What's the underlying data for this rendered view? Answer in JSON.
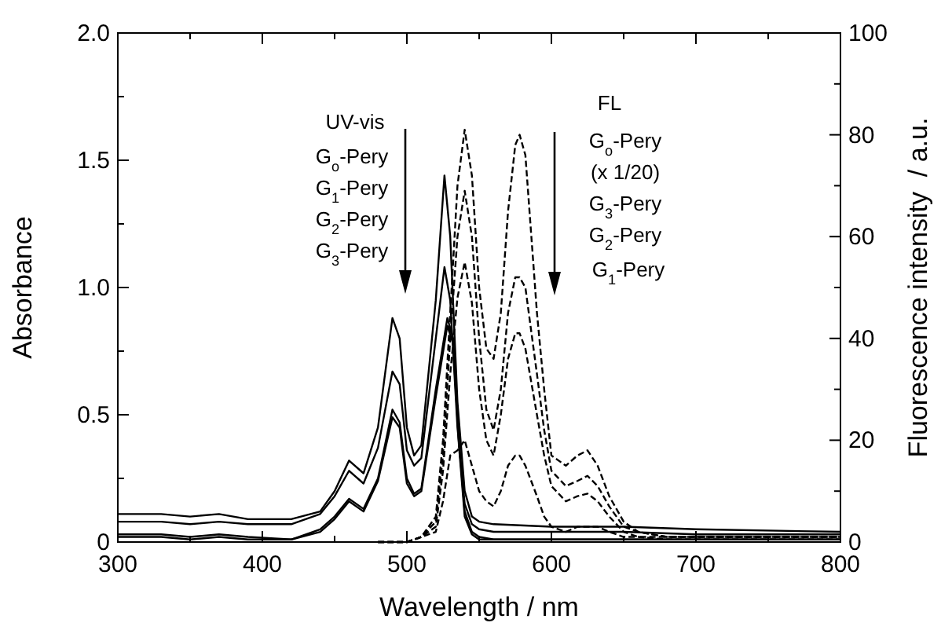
{
  "chart_data": {
    "type": "line",
    "xlabel": "Wavelength / nm",
    "ylabel": "Absorbance",
    "y2label": "Fluorescence intensity  / a.u.",
    "xlim": [
      300,
      800
    ],
    "xticks": [
      300,
      {
        "value": 350,
        "label": null
      },
      400,
      {
        "value": 450,
        "label": null
      },
      500,
      {
        "value": 550,
        "label": null
      },
      600,
      {
        "value": 650,
        "label": null
      },
      700,
      {
        "value": 750,
        "label": null
      },
      800
    ],
    "ylim": [
      0,
      2
    ],
    "yticks": [
      0,
      {
        "value": 0.25,
        "label": null
      },
      0.5,
      {
        "value": 0.75,
        "label": null
      },
      {
        "value": 1,
        "label": "1.0"
      },
      {
        "value": 1.25,
        "label": null
      },
      1.5,
      {
        "value": 1.75,
        "label": null
      },
      {
        "value": 2,
        "label": "2.0"
      }
    ],
    "y2lim": [
      0,
      100
    ],
    "y2ticks": [
      0,
      {
        "value": 10,
        "label": null
      },
      20,
      {
        "value": 30,
        "label": null
      },
      40,
      {
        "value": 50,
        "label": null
      },
      60,
      {
        "value": 70,
        "label": null
      },
      80,
      {
        "value": 90,
        "label": null
      },
      100
    ],
    "annotations": [
      "UV-vis",
      "G$_{o}$-Pery",
      "G$_{1}$-Pery",
      "G$_{2}$-Pery",
      "G$_{3}$-Pery",
      "FL",
      "G$_{o}$-Pery",
      "(x 1/20)",
      "G$_{3}$-Pery",
      "G$_{2}$-Pery",
      "G$_{1}$-Pery"
    ],
    "series": [
      {
        "color": "#000000",
        "line_style": "solid",
        "x": [
          300,
          330,
          350,
          370,
          390,
          420,
          440,
          450,
          460,
          470,
          480,
          490,
          495,
          500,
          505,
          510,
          520,
          526,
          530,
          535,
          540,
          545,
          550,
          560,
          600,
          650,
          700,
          800
        ],
        "values": [
          0.11,
          0.11,
          0.1,
          0.11,
          0.09,
          0.09,
          0.12,
          0.2,
          0.32,
          0.27,
          0.45,
          0.88,
          0.8,
          0.45,
          0.34,
          0.38,
          0.95,
          1.44,
          1.2,
          0.55,
          0.2,
          0.1,
          0.08,
          0.07,
          0.06,
          0.06,
          0.05,
          0.04
        ]
      },
      {
        "color": "#000000",
        "line_style": "solid",
        "x": [
          300,
          330,
          350,
          370,
          390,
          420,
          440,
          450,
          460,
          470,
          480,
          490,
          495,
          500,
          505,
          510,
          520,
          526,
          530,
          535,
          540,
          545,
          550,
          560,
          600,
          650,
          700,
          800
        ],
        "values": [
          0.08,
          0.08,
          0.07,
          0.08,
          0.07,
          0.07,
          0.11,
          0.18,
          0.28,
          0.23,
          0.37,
          0.67,
          0.62,
          0.36,
          0.3,
          0.33,
          0.8,
          1.08,
          0.95,
          0.45,
          0.15,
          0.07,
          0.05,
          0.04,
          0.04,
          0.04,
          0.03,
          0.03
        ]
      },
      {
        "color": "#000000",
        "line_style": "solid",
        "x": [
          300,
          330,
          350,
          370,
          390,
          420,
          440,
          450,
          460,
          470,
          480,
          490,
          495,
          500,
          505,
          510,
          520,
          528,
          532,
          536,
          540,
          545,
          550,
          560,
          600,
          650,
          700,
          800
        ],
        "values": [
          0.03,
          0.03,
          0.02,
          0.03,
          0.02,
          0.01,
          0.05,
          0.1,
          0.17,
          0.13,
          0.25,
          0.52,
          0.47,
          0.25,
          0.19,
          0.21,
          0.6,
          0.88,
          0.8,
          0.4,
          0.12,
          0.04,
          0.02,
          0.01,
          0.01,
          0.01,
          0.01,
          0.01
        ]
      },
      {
        "color": "#000000",
        "line_style": "solid",
        "x": [
          300,
          330,
          350,
          370,
          390,
          420,
          440,
          450,
          460,
          470,
          480,
          490,
          495,
          500,
          505,
          510,
          520,
          528,
          532,
          536,
          540,
          545,
          550,
          560,
          600,
          650,
          700,
          800
        ],
        "values": [
          0.02,
          0.02,
          0.01,
          0.02,
          0.01,
          0.01,
          0.04,
          0.09,
          0.16,
          0.12,
          0.24,
          0.49,
          0.45,
          0.23,
          0.18,
          0.2,
          0.57,
          0.85,
          0.78,
          0.38,
          0.1,
          0.03,
          0.01,
          0.01,
          0.01,
          0.01,
          0.01,
          0.01
        ]
      },
      {
        "color": "#000000",
        "line_style": "dashed",
        "axis": "y2",
        "x": [
          480,
          500,
          510,
          520,
          525,
          530,
          535,
          540,
          545,
          550,
          555,
          560,
          565,
          570,
          575,
          578,
          582,
          590,
          595,
          600,
          610,
          618,
          625,
          632,
          640,
          650,
          660,
          680,
          700,
          750,
          800
        ],
        "values": [
          0,
          0,
          1,
          5,
          20,
          45,
          70,
          81,
          72,
          50,
          38,
          36,
          45,
          65,
          78,
          80,
          76,
          45,
          30,
          17,
          15,
          17,
          18,
          15,
          9,
          4,
          2,
          1,
          1,
          1,
          1
        ]
      },
      {
        "color": "#000000",
        "line_style": "dashed",
        "axis": "y2",
        "x": [
          480,
          500,
          510,
          520,
          525,
          530,
          535,
          540,
          545,
          550,
          555,
          560,
          565,
          570,
          575,
          578,
          582,
          590,
          595,
          600,
          610,
          618,
          625,
          632,
          640,
          650,
          660,
          680,
          700,
          750,
          800
        ],
        "values": [
          0,
          0,
          1,
          4,
          17,
          40,
          60,
          69,
          60,
          40,
          26,
          22,
          30,
          45,
          52,
          52,
          50,
          33,
          22,
          14,
          11,
          12,
          13,
          11,
          7,
          3,
          2,
          1,
          1,
          1,
          1
        ]
      },
      {
        "color": "#000000",
        "line_style": "dashed",
        "axis": "y2",
        "x": [
          480,
          500,
          510,
          520,
          525,
          530,
          535,
          540,
          545,
          550,
          555,
          560,
          565,
          570,
          575,
          578,
          582,
          590,
          595,
          600,
          610,
          618,
          625,
          632,
          640,
          650,
          660,
          680,
          700,
          750,
          800
        ],
        "values": [
          0,
          0,
          1,
          3,
          14,
          33,
          48,
          55,
          47,
          30,
          20,
          17,
          25,
          36,
          41,
          41,
          38,
          25,
          17,
          11,
          8,
          9,
          9.5,
          8,
          5,
          2,
          1,
          1,
          1,
          1,
          1
        ]
      },
      {
        "color": "#000000",
        "line_style": "dashed",
        "axis": "y2",
        "x": [
          480,
          500,
          510,
          520,
          525,
          530,
          535,
          540,
          545,
          550,
          555,
          560,
          565,
          570,
          575,
          578,
          582,
          590,
          595,
          600,
          610,
          618,
          625,
          632,
          640,
          650,
          660,
          680,
          700,
          750,
          800
        ],
        "values": [
          0,
          0,
          1,
          2,
          8,
          17,
          18,
          20,
          15,
          10,
          8,
          7,
          10,
          15,
          17,
          17,
          15,
          9,
          5,
          3,
          2,
          3,
          3,
          3,
          2,
          1,
          1,
          0.5,
          0.5,
          0.5,
          0.5
        ]
      }
    ]
  }
}
